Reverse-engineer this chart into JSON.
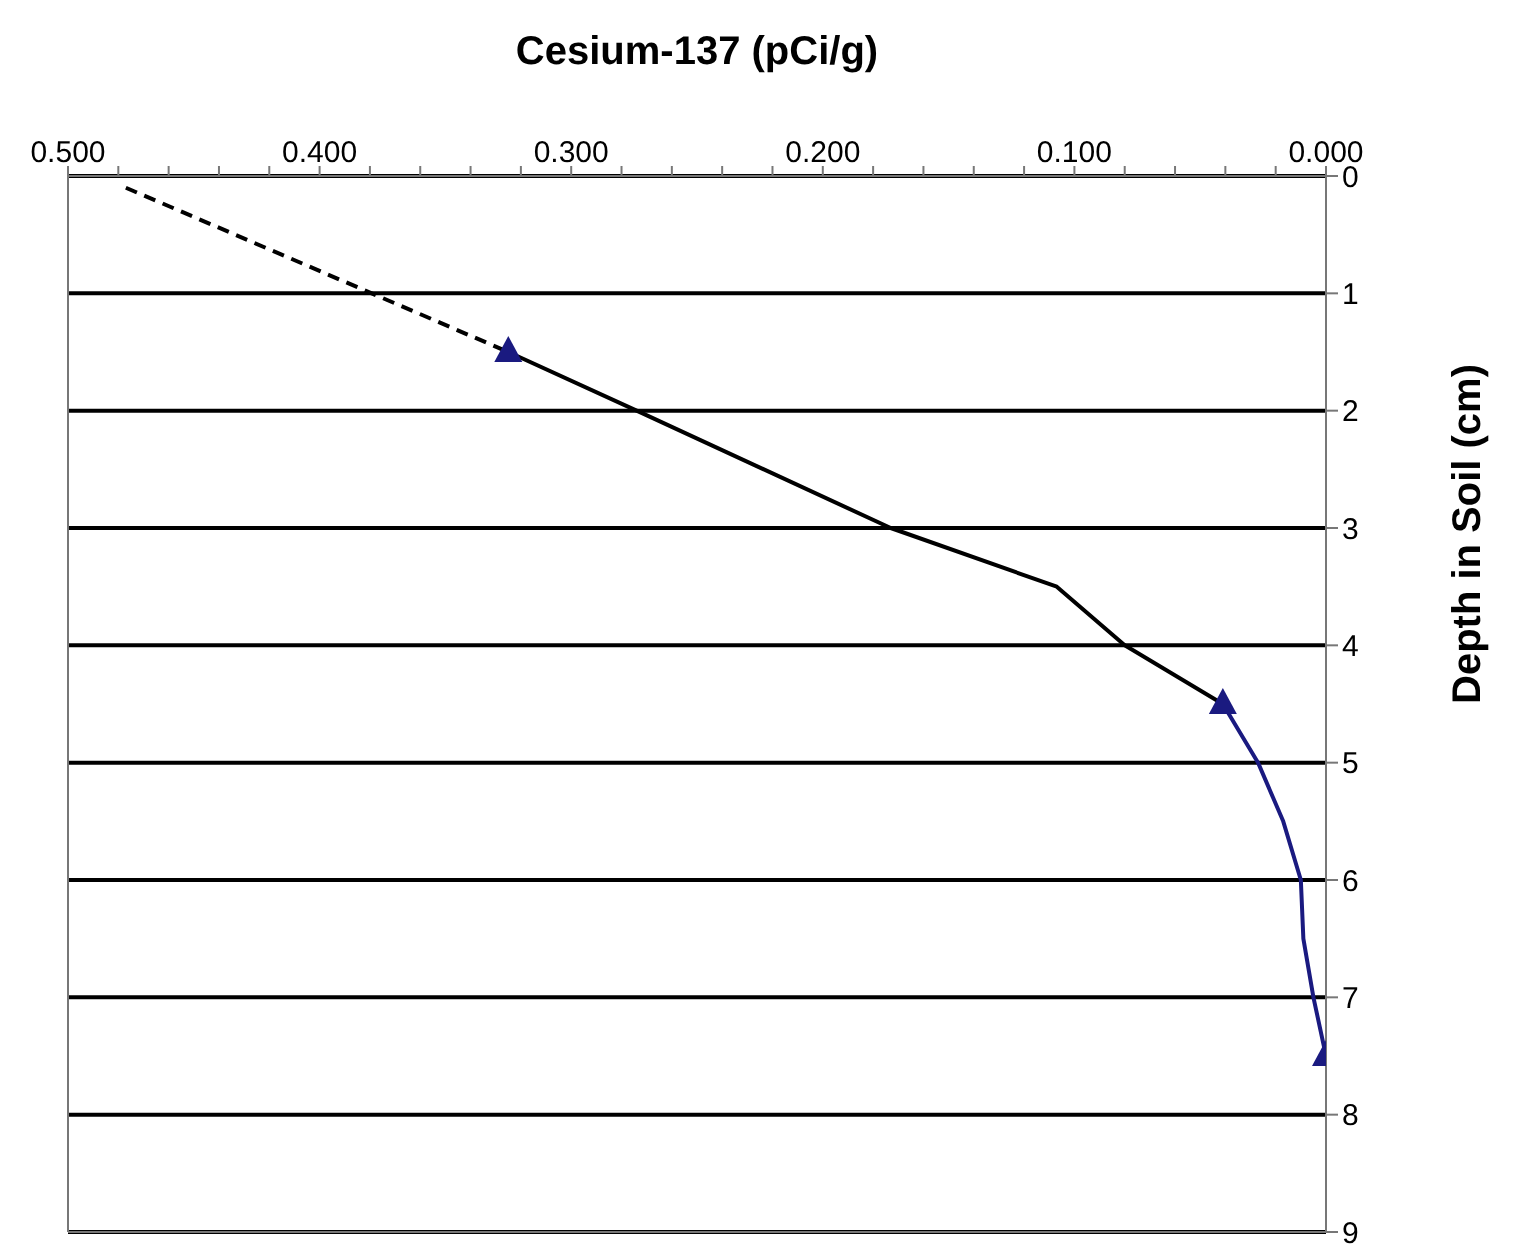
{
  "chart_data": {
    "type": "line",
    "xlabel": "Cesium-137 (pCi/g)",
    "ylabel": "Depth in Soil (cm)",
    "xlim": [
      0.5,
      0
    ],
    "ylim": [
      9,
      0
    ],
    "xticks": [
      {
        "value": 0.5,
        "label": "0.500"
      },
      {
        "value": 0.48,
        "label": null
      },
      {
        "value": 0.46,
        "label": null
      },
      {
        "value": 0.44,
        "label": null
      },
      {
        "value": 0.42,
        "label": null
      },
      {
        "value": 0.4,
        "label": "0.400"
      },
      {
        "value": 0.38,
        "label": null
      },
      {
        "value": 0.36,
        "label": null
      },
      {
        "value": 0.34,
        "label": null
      },
      {
        "value": 0.32,
        "label": null
      },
      {
        "value": 0.3,
        "label": "0.300"
      },
      {
        "value": 0.28,
        "label": null
      },
      {
        "value": 0.26,
        "label": null
      },
      {
        "value": 0.24,
        "label": null
      },
      {
        "value": 0.22,
        "label": null
      },
      {
        "value": 0.2,
        "label": "0.200"
      },
      {
        "value": 0.18,
        "label": null
      },
      {
        "value": 0.16,
        "label": null
      },
      {
        "value": 0.14,
        "label": null
      },
      {
        "value": 0.12,
        "label": null
      },
      {
        "value": 0.1,
        "label": "0.100"
      },
      {
        "value": 0.08,
        "label": null
      },
      {
        "value": 0.06,
        "label": null
      },
      {
        "value": 0.04,
        "label": null
      },
      {
        "value": 0.02,
        "label": null
      },
      {
        "value": 0,
        "label": "0.000"
      }
    ],
    "yticks": [
      0,
      1,
      2,
      3,
      4,
      5,
      6,
      7,
      8,
      9
    ],
    "grid": "y",
    "legend": false,
    "series": [
      {
        "color": "#000000",
        "line_style": "dashed",
        "marker": "none",
        "x": [
          0.477,
          0.325
        ],
        "values": [
          0.1,
          1.5
        ]
      },
      {
        "color": "#000000",
        "line_style": "solid",
        "marker": "none",
        "x": [
          0.325,
          0.274,
          0.173,
          0.107,
          0.08,
          0.041
        ],
        "values": [
          1.5,
          2,
          3,
          3.5,
          4,
          4.5
        ]
      },
      {
        "color": "#1a1a80",
        "line_style": "solid",
        "marker": "none",
        "x": [
          0.041,
          0.027,
          0.017,
          0.01,
          0.009,
          0.005,
          0.0
        ],
        "values": [
          4.5,
          5,
          5.5,
          6,
          6.5,
          7,
          7.5
        ]
      },
      {
        "type": "scatter",
        "color": "#1a1a80",
        "marker": "triangle",
        "x": [
          0.325,
          0.041,
          0.0
        ],
        "values": [
          1.5,
          4.5,
          7.5
        ]
      }
    ]
  }
}
